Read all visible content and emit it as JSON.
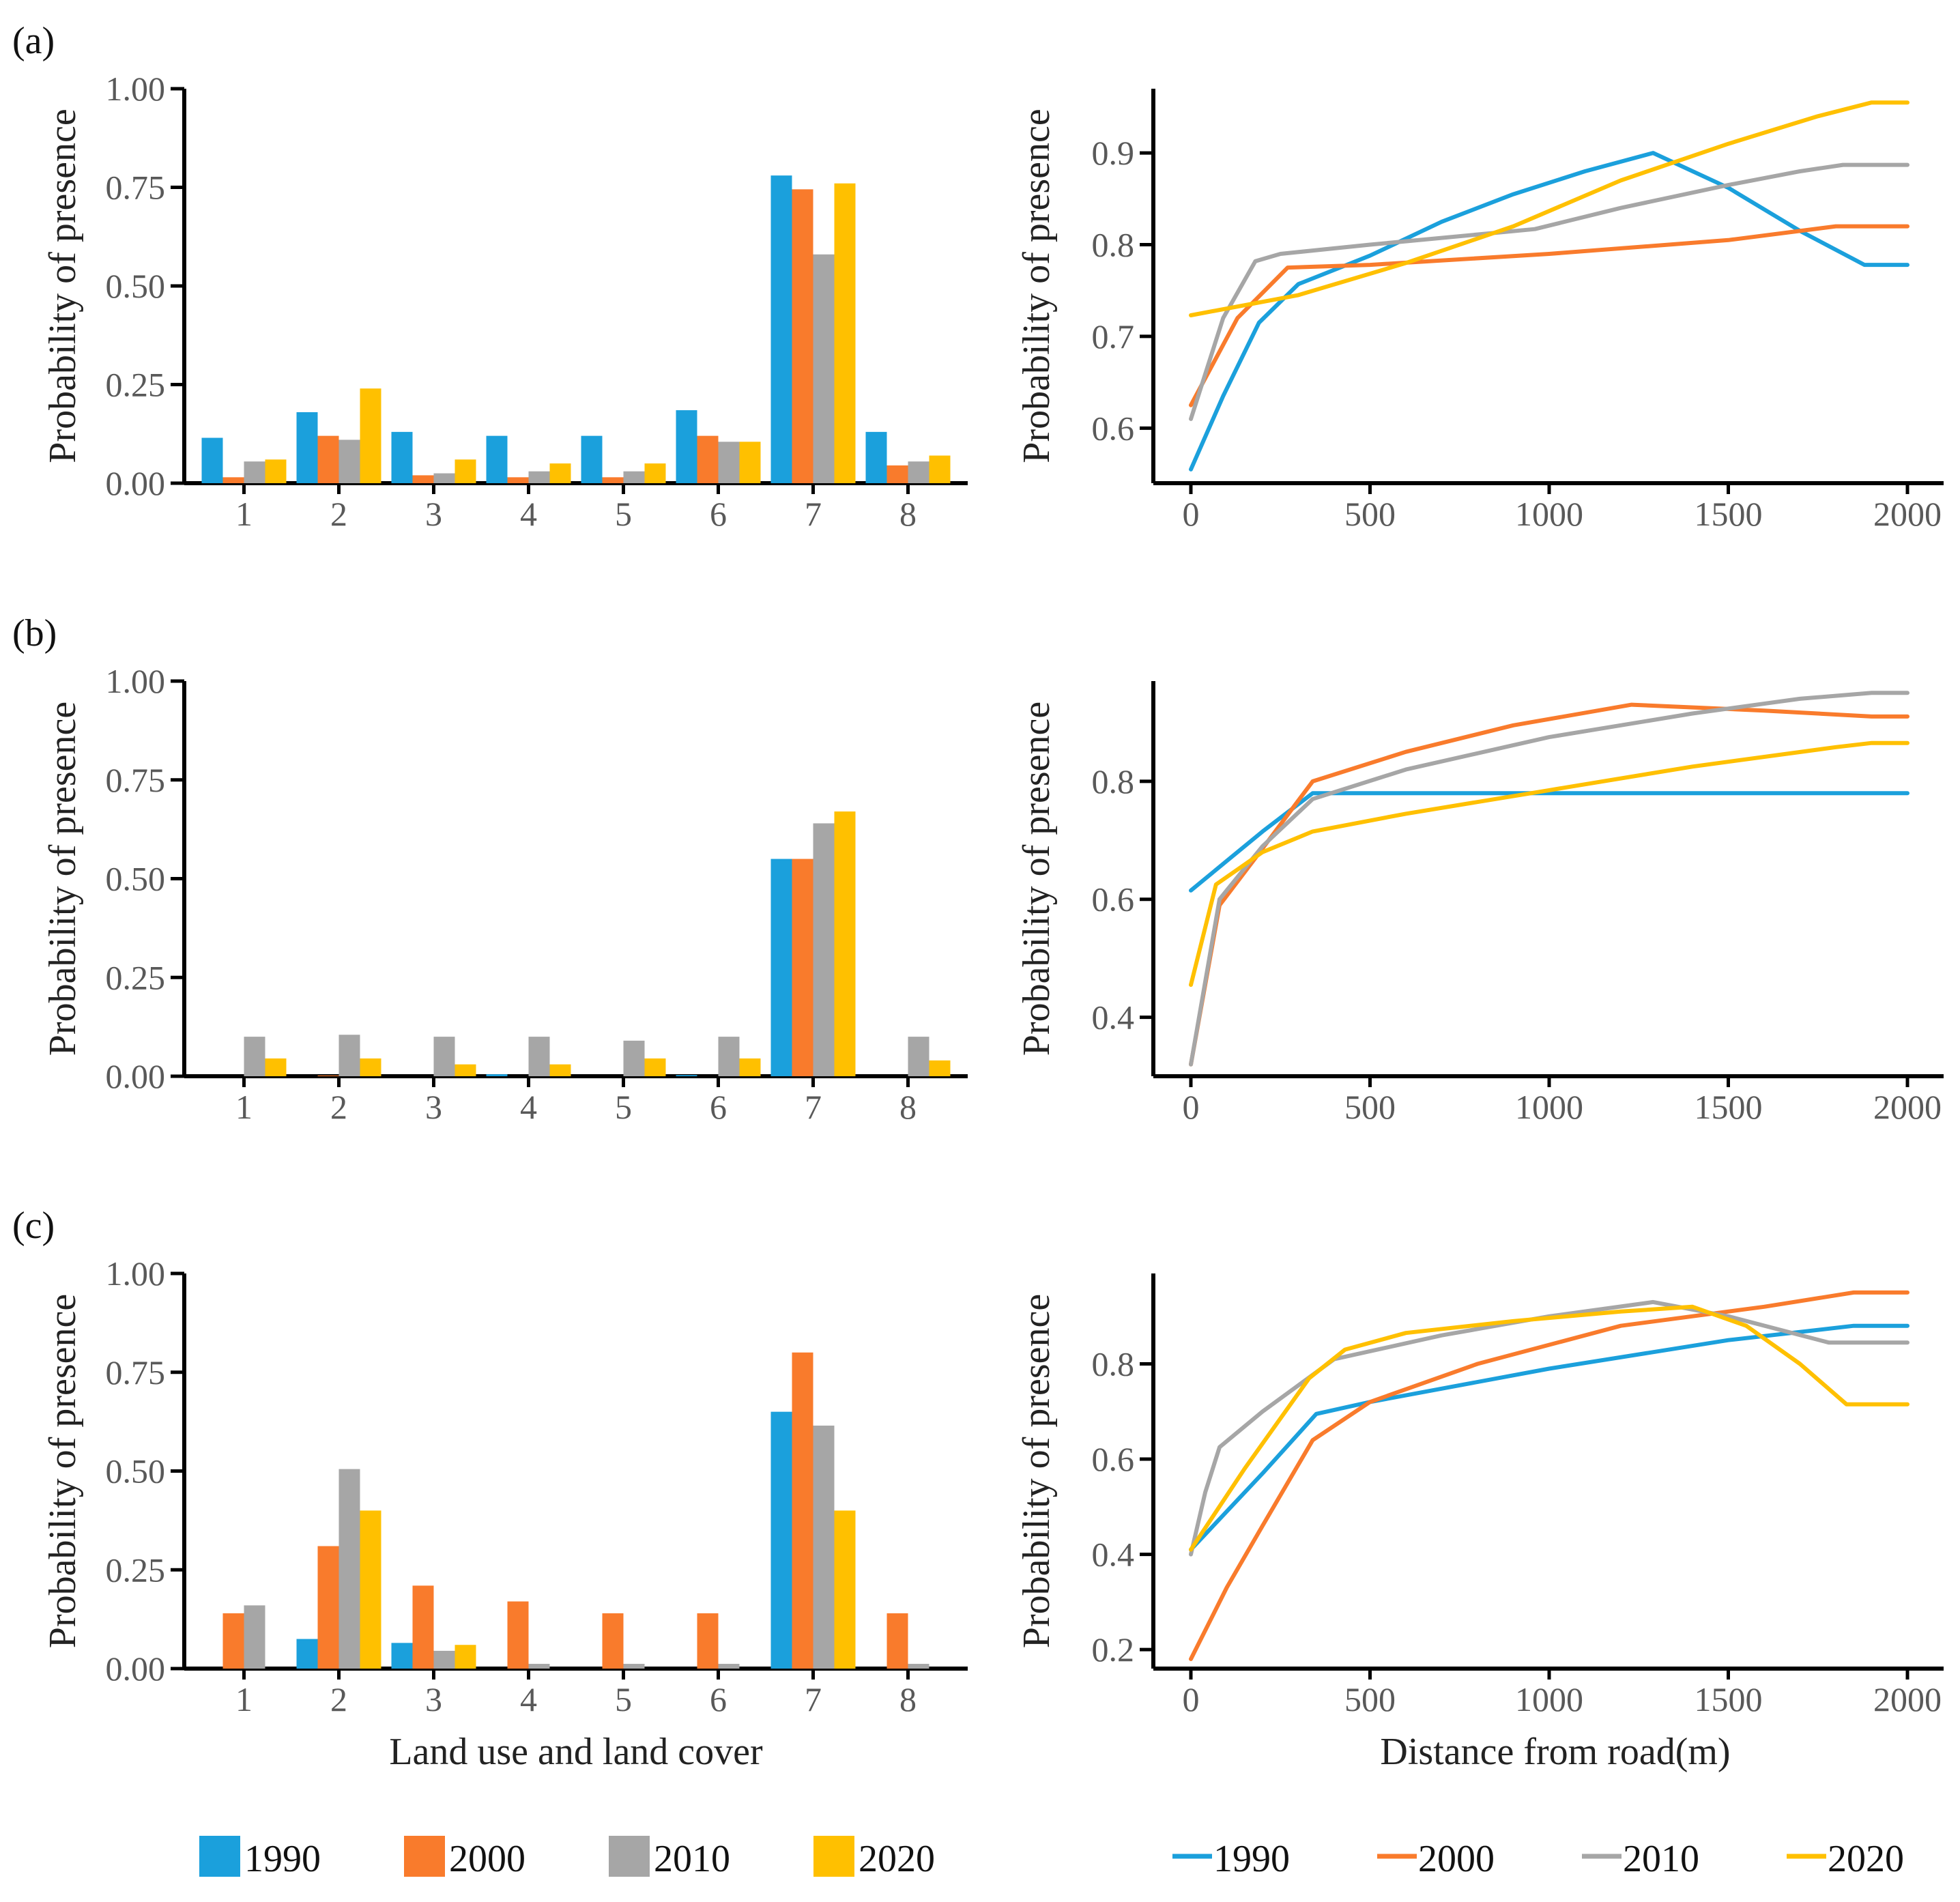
{
  "colors": {
    "1990": "#1ba0dc",
    "2000": "#f97b2c",
    "2010": "#a6a6a6",
    "2020": "#ffc000"
  },
  "legend": {
    "bars": [
      "1990",
      "2000",
      "2010",
      "2020"
    ],
    "lines": [
      "1990",
      "2000",
      "2010",
      "2020"
    ]
  },
  "chart_data": [
    {
      "panel": "(a)",
      "type": "bar",
      "ylabel": "Probability of presence",
      "xlabel": "",
      "ylim": [
        0,
        1
      ],
      "yticks": [
        "0.00",
        "0.25",
        "0.50",
        "0.75",
        "1.00"
      ],
      "categories": [
        "1",
        "2",
        "3",
        "4",
        "5",
        "6",
        "7",
        "8"
      ],
      "series": [
        {
          "name": "1990",
          "values": [
            0.115,
            0.18,
            0.13,
            0.12,
            0.12,
            0.185,
            0.78,
            0.13
          ]
        },
        {
          "name": "2000",
          "values": [
            0.015,
            0.12,
            0.02,
            0.015,
            0.015,
            0.12,
            0.745,
            0.045
          ]
        },
        {
          "name": "2010",
          "values": [
            0.055,
            0.11,
            0.025,
            0.03,
            0.03,
            0.105,
            0.58,
            0.055
          ]
        },
        {
          "name": "2020",
          "values": [
            0.06,
            0.24,
            0.06,
            0.05,
            0.05,
            0.105,
            0.76,
            0.07
          ]
        }
      ]
    },
    {
      "panel": "(a)",
      "type": "line",
      "ylabel": "Probability of presence",
      "xlabel": "",
      "xlim": [
        0,
        2000
      ],
      "ylim": [
        0.54,
        0.97
      ],
      "xticks": [
        0,
        500,
        1000,
        1500,
        2000
      ],
      "xtick_labels": [
        "0",
        "500",
        "1000",
        "1500",
        "2000"
      ],
      "yticks": [
        0.6,
        0.7,
        0.8,
        0.9
      ],
      "ytick_labels": [
        "0.6",
        "0.7",
        "0.8",
        "0.9"
      ],
      "series": [
        {
          "name": "1990",
          "x": [
            0,
            90,
            190,
            300,
            500,
            700,
            900,
            1100,
            1290,
            1500,
            1700,
            1880,
            2000
          ],
          "y": [
            0.555,
            0.635,
            0.715,
            0.757,
            0.788,
            0.825,
            0.855,
            0.88,
            0.9,
            0.862,
            0.815,
            0.778,
            0.778
          ]
        },
        {
          "name": "2000",
          "x": [
            0,
            130,
            270,
            500,
            1000,
            1500,
            1800,
            2000
          ],
          "y": [
            0.625,
            0.72,
            0.775,
            0.778,
            0.79,
            0.805,
            0.82,
            0.82
          ]
        },
        {
          "name": "2010",
          "x": [
            0,
            90,
            180,
            250,
            500,
            960,
            1200,
            1500,
            1700,
            1820,
            2000
          ],
          "y": [
            0.61,
            0.72,
            0.782,
            0.79,
            0.8,
            0.817,
            0.84,
            0.865,
            0.88,
            0.887,
            0.887
          ]
        },
        {
          "name": "2020",
          "x": [
            0,
            300,
            600,
            900,
            1200,
            1500,
            1750,
            1900,
            2000
          ],
          "y": [
            0.723,
            0.745,
            0.78,
            0.82,
            0.87,
            0.91,
            0.94,
            0.955,
            0.955
          ]
        }
      ]
    },
    {
      "panel": "(b)",
      "type": "bar",
      "ylabel": "Probability of presence",
      "xlabel": "",
      "ylim": [
        0,
        1
      ],
      "yticks": [
        "0.00",
        "0.25",
        "0.50",
        "0.75",
        "1.00"
      ],
      "categories": [
        "1",
        "2",
        "3",
        "4",
        "5",
        "6",
        "7",
        "8"
      ],
      "series": [
        {
          "name": "1990",
          "values": [
            0,
            0,
            0,
            0.005,
            0,
            0.003,
            0.55,
            0
          ]
        },
        {
          "name": "2000",
          "values": [
            0,
            0.002,
            0,
            0,
            0,
            0,
            0.55,
            0
          ]
        },
        {
          "name": "2010",
          "values": [
            0.1,
            0.105,
            0.1,
            0.1,
            0.09,
            0.1,
            0.64,
            0.1
          ]
        },
        {
          "name": "2020",
          "values": [
            0.045,
            0.045,
            0.03,
            0.03,
            0.045,
            0.045,
            0.67,
            0.04
          ]
        }
      ]
    },
    {
      "panel": "(b)",
      "type": "line",
      "ylabel": "Probability of presence",
      "xlabel": "",
      "xlim": [
        0,
        2000
      ],
      "ylim": [
        0.3,
        0.97
      ],
      "xticks": [
        0,
        500,
        1000,
        1500,
        2000
      ],
      "xtick_labels": [
        "0",
        "500",
        "1000",
        "1500",
        "2000"
      ],
      "yticks": [
        0.4,
        0.6,
        0.8
      ],
      "ytick_labels": [
        "0.4",
        "0.6",
        "0.8"
      ],
      "series": [
        {
          "name": "1990",
          "x": [
            0,
            100,
            200,
            340,
            500,
            1000,
            1500,
            2000
          ],
          "y": [
            0.615,
            0.665,
            0.715,
            0.78,
            0.78,
            0.78,
            0.78,
            0.78
          ]
        },
        {
          "name": "2000",
          "x": [
            0,
            80,
            180,
            340,
            600,
            900,
            1230,
            1600,
            1900,
            2000
          ],
          "y": [
            0.32,
            0.59,
            0.67,
            0.8,
            0.85,
            0.895,
            0.93,
            0.92,
            0.91,
            0.91
          ]
        },
        {
          "name": "2010",
          "x": [
            0,
            80,
            200,
            340,
            600,
            1000,
            1400,
            1700,
            1900,
            2000
          ],
          "y": [
            0.32,
            0.6,
            0.69,
            0.77,
            0.82,
            0.875,
            0.915,
            0.94,
            0.95,
            0.95
          ]
        },
        {
          "name": "2020",
          "x": [
            0,
            70,
            200,
            340,
            600,
            1000,
            1400,
            1800,
            1900,
            2000
          ],
          "y": [
            0.455,
            0.625,
            0.68,
            0.715,
            0.745,
            0.785,
            0.825,
            0.858,
            0.865,
            0.865
          ]
        }
      ]
    },
    {
      "panel": "(c)",
      "type": "bar",
      "ylabel": "Probability of presence",
      "xlabel": "Land use and land cover",
      "ylim": [
        0,
        1
      ],
      "yticks": [
        "0.00",
        "0.25",
        "0.50",
        "0.75",
        "1.00"
      ],
      "categories": [
        "1",
        "2",
        "3",
        "4",
        "5",
        "6",
        "7",
        "8"
      ],
      "series": [
        {
          "name": "1990",
          "values": [
            0,
            0.075,
            0.065,
            0,
            0,
            0,
            0.65,
            0
          ]
        },
        {
          "name": "2000",
          "values": [
            0.14,
            0.31,
            0.21,
            0.17,
            0.14,
            0.14,
            0.8,
            0.14
          ]
        },
        {
          "name": "2010",
          "values": [
            0.16,
            0.505,
            0.045,
            0.012,
            0.012,
            0.012,
            0.615,
            0.012
          ]
        },
        {
          "name": "2020",
          "values": [
            0,
            0.4,
            0.06,
            0,
            0,
            0,
            0.4,
            0
          ]
        }
      ]
    },
    {
      "panel": "(c)",
      "type": "line",
      "ylabel": "Probability of presence",
      "xlabel": "Distance from road(m)",
      "xlim": [
        0,
        2000
      ],
      "ylim": [
        0.16,
        0.99
      ],
      "xticks": [
        0,
        500,
        1000,
        1500,
        2000
      ],
      "xtick_labels": [
        "0",
        "500",
        "1000",
        "1500",
        "2000"
      ],
      "yticks": [
        0.2,
        0.4,
        0.6,
        0.8
      ],
      "ytick_labels": [
        "0.2",
        "0.4",
        "0.6",
        "0.8"
      ],
      "series": [
        {
          "name": "1990",
          "x": [
            0,
            200,
            350,
            500,
            1000,
            1500,
            1850,
            2000
          ],
          "y": [
            0.41,
            0.57,
            0.695,
            0.72,
            0.79,
            0.85,
            0.88,
            0.88
          ]
        },
        {
          "name": "2000",
          "x": [
            0,
            100,
            200,
            340,
            500,
            800,
            1200,
            1600,
            1850,
            2000
          ],
          "y": [
            0.18,
            0.33,
            0.46,
            0.64,
            0.72,
            0.8,
            0.88,
            0.92,
            0.95,
            0.95
          ]
        },
        {
          "name": "2010",
          "x": [
            0,
            40,
            80,
            200,
            400,
            700,
            1000,
            1290,
            1500,
            1780,
            2000
          ],
          "y": [
            0.4,
            0.53,
            0.625,
            0.7,
            0.81,
            0.86,
            0.9,
            0.93,
            0.9,
            0.845,
            0.845
          ]
        },
        {
          "name": "2020",
          "x": [
            0,
            150,
            330,
            430,
            600,
            900,
            1200,
            1400,
            1550,
            1700,
            1830,
            2000
          ],
          "y": [
            0.41,
            0.58,
            0.77,
            0.83,
            0.865,
            0.89,
            0.91,
            0.92,
            0.88,
            0.8,
            0.715,
            0.715
          ]
        }
      ]
    }
  ]
}
